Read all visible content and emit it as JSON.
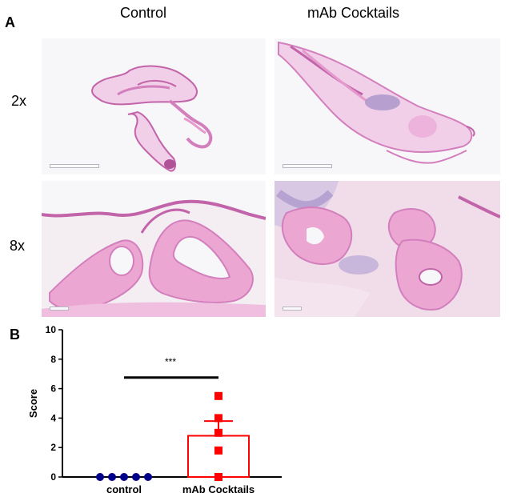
{
  "panel_a": {
    "letter": "A",
    "columns": [
      "Control",
      "mAb Cocktails"
    ],
    "rows": [
      "2x",
      "8x"
    ]
  },
  "panel_b": {
    "letter": "B",
    "significance": "***"
  },
  "colors": {
    "tissue_light": "#f1c9e6",
    "tissue_mid": "#e59acd",
    "tissue_dark": "#c264a9",
    "tissue_purple": "#a793c9",
    "background_slide": "#f7f6f8",
    "control_marker": "#00008b",
    "mab_marker": "#ff0000"
  },
  "chart_data": {
    "type": "bar",
    "categories": [
      "control",
      "mAb Cocktails"
    ],
    "ylabel": "Score",
    "xlabel": "",
    "ylim": [
      0,
      10
    ],
    "yticks": [
      0,
      2,
      4,
      6,
      8,
      10
    ],
    "bars": [
      {
        "category": "control",
        "mean": 0,
        "sem": 0
      },
      {
        "category": "mAb Cocktails",
        "mean": 2.8,
        "sem": 1.0
      }
    ],
    "points": {
      "control": [
        0,
        0,
        0,
        0,
        0
      ],
      "mAb Cocktails": [
        5.5,
        4.0,
        3.0,
        1.8,
        0
      ]
    },
    "significance": {
      "between": [
        "control",
        "mAb Cocktails"
      ],
      "label": "***"
    }
  }
}
